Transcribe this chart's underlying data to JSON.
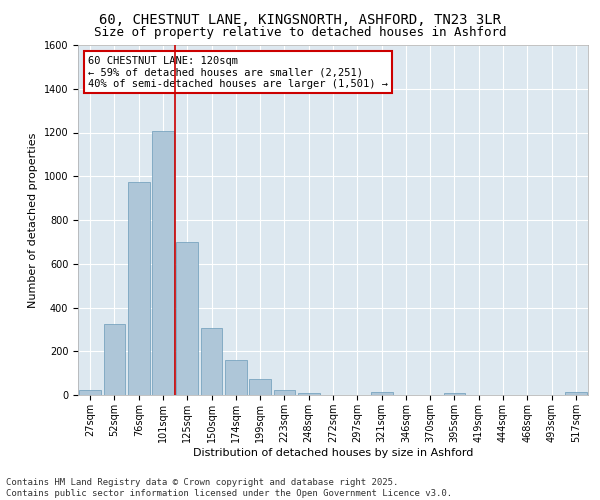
{
  "title": "60, CHESTNUT LANE, KINGSNORTH, ASHFORD, TN23 3LR",
  "subtitle": "Size of property relative to detached houses in Ashford",
  "xlabel": "Distribution of detached houses by size in Ashford",
  "ylabel": "Number of detached properties",
  "categories": [
    "27sqm",
    "52sqm",
    "76sqm",
    "101sqm",
    "125sqm",
    "150sqm",
    "174sqm",
    "199sqm",
    "223sqm",
    "248sqm",
    "272sqm",
    "297sqm",
    "321sqm",
    "346sqm",
    "370sqm",
    "395sqm",
    "419sqm",
    "444sqm",
    "468sqm",
    "493sqm",
    "517sqm"
  ],
  "values": [
    25,
    325,
    975,
    1205,
    700,
    305,
    160,
    75,
    25,
    10,
    0,
    0,
    15,
    0,
    0,
    10,
    0,
    0,
    0,
    0,
    15
  ],
  "bar_color": "#aec6d8",
  "bar_edge_color": "#6a9ab8",
  "highlight_line_color": "#cc0000",
  "highlight_bar_index": 3,
  "annotation_text": "60 CHESTNUT LANE: 120sqm\n← 59% of detached houses are smaller (2,251)\n40% of semi-detached houses are larger (1,501) →",
  "annotation_box_facecolor": "#ffffff",
  "annotation_box_edgecolor": "#cc0000",
  "ylim": [
    0,
    1600
  ],
  "yticks": [
    0,
    200,
    400,
    600,
    800,
    1000,
    1200,
    1400,
    1600
  ],
  "plot_bg_color": "#dde8f0",
  "fig_bg_color": "#ffffff",
  "grid_color": "#ffffff",
  "footer_text": "Contains HM Land Registry data © Crown copyright and database right 2025.\nContains public sector information licensed under the Open Government Licence v3.0.",
  "title_fontsize": 10,
  "subtitle_fontsize": 9,
  "axis_label_fontsize": 8,
  "tick_fontsize": 7,
  "annotation_fontsize": 7.5,
  "footer_fontsize": 6.5
}
